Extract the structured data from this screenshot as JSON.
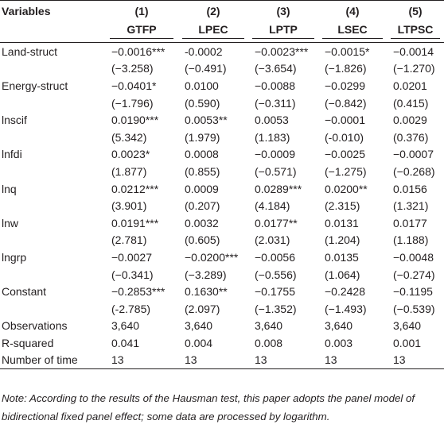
{
  "header": {
    "columns": [
      "Variables",
      "(1)",
      "(2)",
      "(3)",
      "(4)",
      "(5)"
    ],
    "models": [
      "GTFP",
      "LPEC",
      "LPTP",
      "LSEC",
      "LTPSC"
    ]
  },
  "rows": [
    {
      "label": "Land-struct",
      "coef": [
        "−0.0016***",
        "-0.0002",
        "−0.0023***",
        "−0.0015*",
        "−0.0014"
      ],
      "t": [
        "(−3.258)",
        "(−0.491)",
        "(−3.654)",
        "(−1.826)",
        "(−1.270)"
      ]
    },
    {
      "label": "Energy-struct",
      "coef": [
        "−0.0401*",
        "0.0100",
        "−0.0088",
        "−0.0299",
        "0.0201"
      ],
      "t": [
        "(−1.796)",
        "(0.590)",
        "(−0.311)",
        "(−0.842)",
        "(0.415)"
      ]
    },
    {
      "label": "lnscif",
      "coef": [
        "0.0190***",
        "0.0053**",
        "0.0053",
        "−0.0001",
        "0.0029"
      ],
      "t": [
        "(5.342)",
        "(1.979)",
        "(1.183)",
        "(-0.010)",
        "(0.376)"
      ]
    },
    {
      "label": "lnfdi",
      "coef": [
        "0.0023*",
        "0.0008",
        "−0.0009",
        "−0.0025",
        "−0.0007"
      ],
      "t": [
        "(1.877)",
        "(0.855)",
        "(−0.571)",
        "(−1.275)",
        "(−0.268)"
      ]
    },
    {
      "label": "lnq",
      "coef": [
        "0.0212***",
        "0.0009",
        "0.0289***",
        "0.0200**",
        "0.0156"
      ],
      "t": [
        "(3.901)",
        "(0.207)",
        "(4.184)",
        "(2.315)",
        "(1.321)"
      ]
    },
    {
      "label": "lnw",
      "coef": [
        "0.0191***",
        "0.0032",
        "0.0177**",
        "0.0131",
        "0.0177"
      ],
      "t": [
        "(2.781)",
        "(0.605)",
        "(2.031)",
        "(1.204)",
        "(1.188)"
      ]
    },
    {
      "label": "lngrp",
      "coef": [
        "−0.0027",
        "−0.0200***",
        "−0.0056",
        "0.0135",
        "−0.0048"
      ],
      "t": [
        "(−0.341)",
        "(−3.289)",
        "(−0.556)",
        "(1.064)",
        "(−0.274)"
      ]
    },
    {
      "label": "Constant",
      "coef": [
        "−0.2853***",
        "0.1630**",
        "−0.1755",
        "−0.2428",
        "−0.1195"
      ],
      "t": [
        "(-2.785)",
        "(2.097)",
        "(−1.352)",
        "(−1.493)",
        "(−0.539)"
      ]
    }
  ],
  "stats": [
    {
      "label": "Observations",
      "values": [
        "3,640",
        "3,640",
        "3,640",
        "3,640",
        "3,640"
      ]
    },
    {
      "label": "R-squared",
      "values": [
        "0.041",
        "0.004",
        "0.008",
        "0.003",
        "0.001"
      ]
    },
    {
      "label": "Number of time",
      "values": [
        "13",
        "13",
        "13",
        "13",
        "13"
      ]
    }
  ],
  "note": "Note: According to the results of the Hausman test, this paper adopts the panel model of bidirectional fixed panel effect; some data are processed by logarithm."
}
